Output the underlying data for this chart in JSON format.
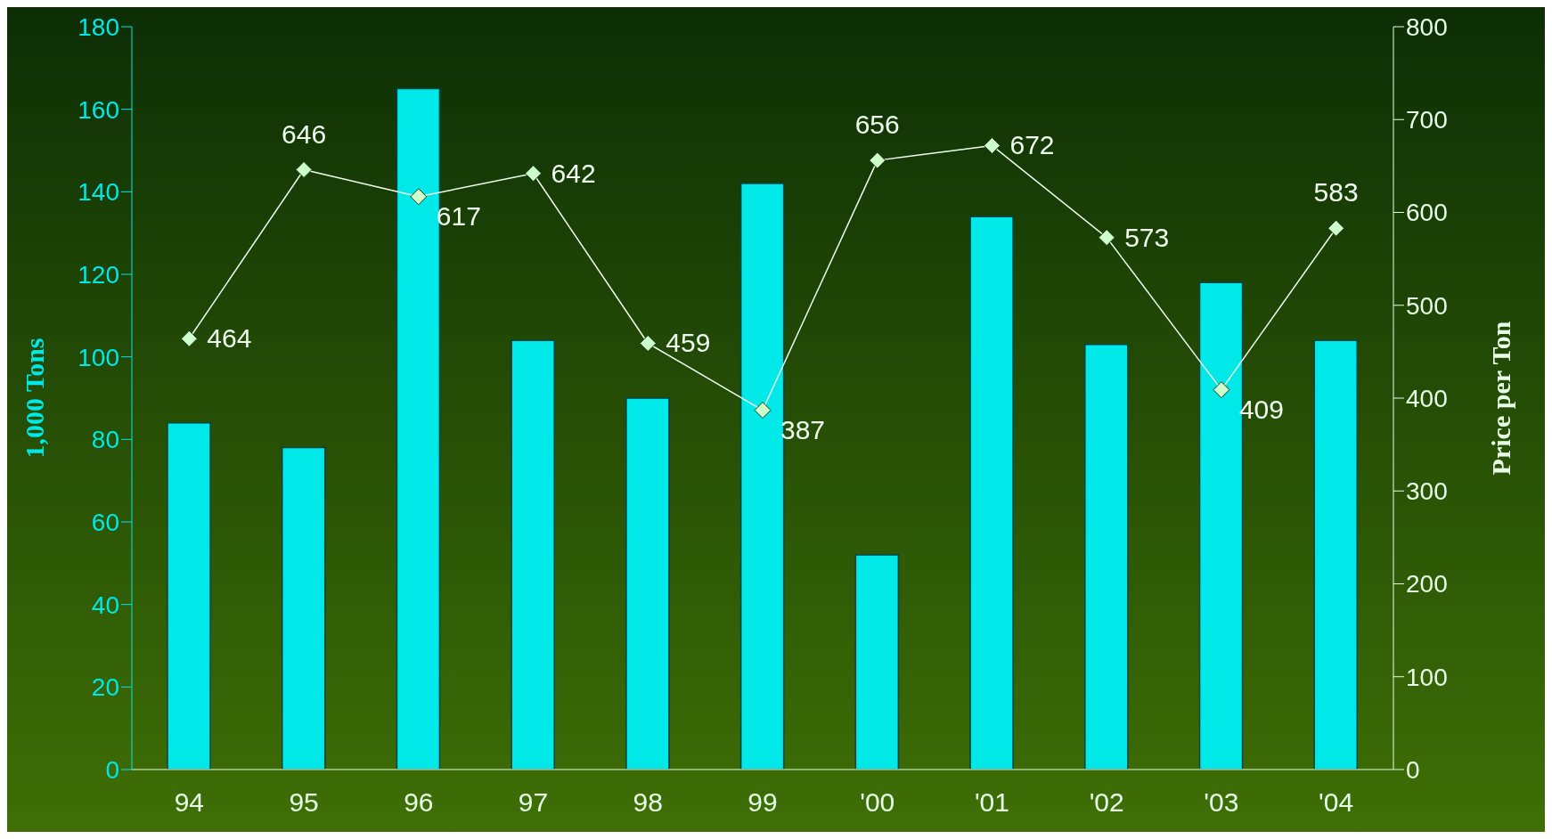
{
  "chart_data": {
    "type": "bar",
    "ylabel": "1,000 Tons",
    "y2label": "Price per Ton",
    "categories": [
      "94",
      "95",
      "96",
      "97",
      "98",
      "99",
      "'00",
      "'01",
      "'02",
      "'03",
      "'04"
    ],
    "series": [
      {
        "color": "#00e8e8",
        "values": [
          84,
          78,
          165,
          104,
          90,
          142,
          52,
          134,
          103,
          118,
          104
        ]
      },
      {
        "type": "line",
        "axis": "y2",
        "color": "#ccffcc",
        "marker": "diamond",
        "data_labels": true,
        "values": [
          464,
          646,
          617,
          642,
          459,
          387,
          656,
          672,
          573,
          409,
          583
        ]
      }
    ],
    "ylim": [
      0,
      180
    ],
    "yticks": [
      0,
      20,
      40,
      60,
      80,
      100,
      120,
      140,
      160,
      180
    ],
    "y2lim": [
      0,
      800
    ],
    "y2ticks": [
      0,
      100,
      200,
      300,
      400,
      500,
      600,
      700,
      800
    ],
    "grid": false,
    "legend": false
  }
}
